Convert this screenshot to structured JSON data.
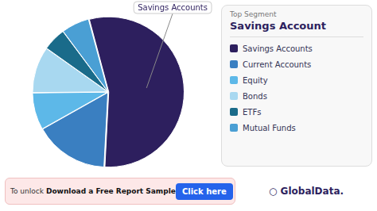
{
  "chart_data": {
    "type": "pie",
    "categories": [
      "Savings Accounts",
      "Current Accounts",
      "Equity",
      "Bonds",
      "ETFs",
      "Mutual Funds"
    ],
    "values": [
      55,
      16,
      8,
      10,
      5,
      6
    ],
    "colors": [
      "#2d1f5e",
      "#3a7fc1",
      "#5db8e8",
      "#a8d8f0",
      "#1a6b8a",
      "#4a9fd4"
    ],
    "legend": "right",
    "annotations": [
      "Savings Accounts",
      "Top Segment",
      "Savings Account",
      "To unlock",
      "Download a Free Report Sample",
      "Click here",
      "○ GlobalData."
    ]
  }
}
